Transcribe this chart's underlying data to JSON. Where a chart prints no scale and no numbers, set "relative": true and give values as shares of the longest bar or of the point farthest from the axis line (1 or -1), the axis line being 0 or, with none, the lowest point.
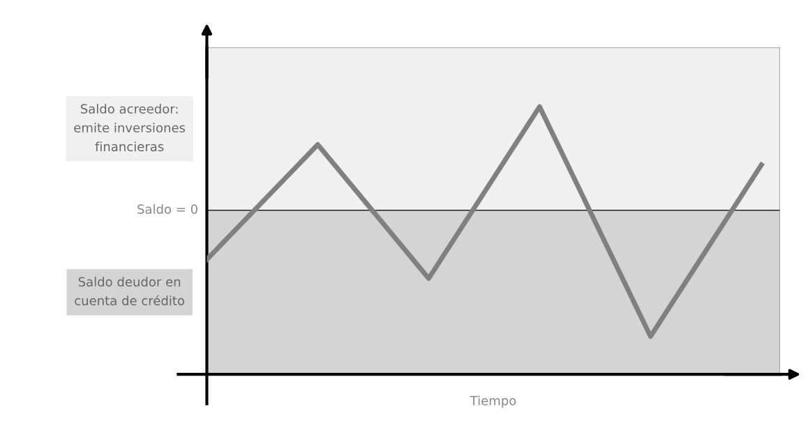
{
  "chart_data": {
    "type": "line",
    "relative": true,
    "xlabel": "Tiempo",
    "categories": [
      null,
      null,
      null,
      null,
      null,
      null
    ],
    "series": [
      {
        "color": "#808080",
        "values": [
          -0.39,
          0.52,
          -0.54,
          0.82,
          -1,
          0.36
        ]
      }
    ],
    "ref_lines": [
      {
        "axis": "y",
        "value": 0,
        "label": "Saldo = 0",
        "color": "#000000"
      }
    ],
    "bands": [
      {
        "axis": "y",
        "from": 0,
        "to": 1.29,
        "label": "Saldo acreedor:\nemite inversiones\nfinancieras",
        "color": "#f0f0f0"
      },
      {
        "axis": "y",
        "from": -1.3,
        "to": 0,
        "label": "Saldo deudor en\ncuenta de crédito",
        "color": "#d4d4d4"
      }
    ],
    "legend": false,
    "marker": "none",
    "line_style": "solid"
  }
}
